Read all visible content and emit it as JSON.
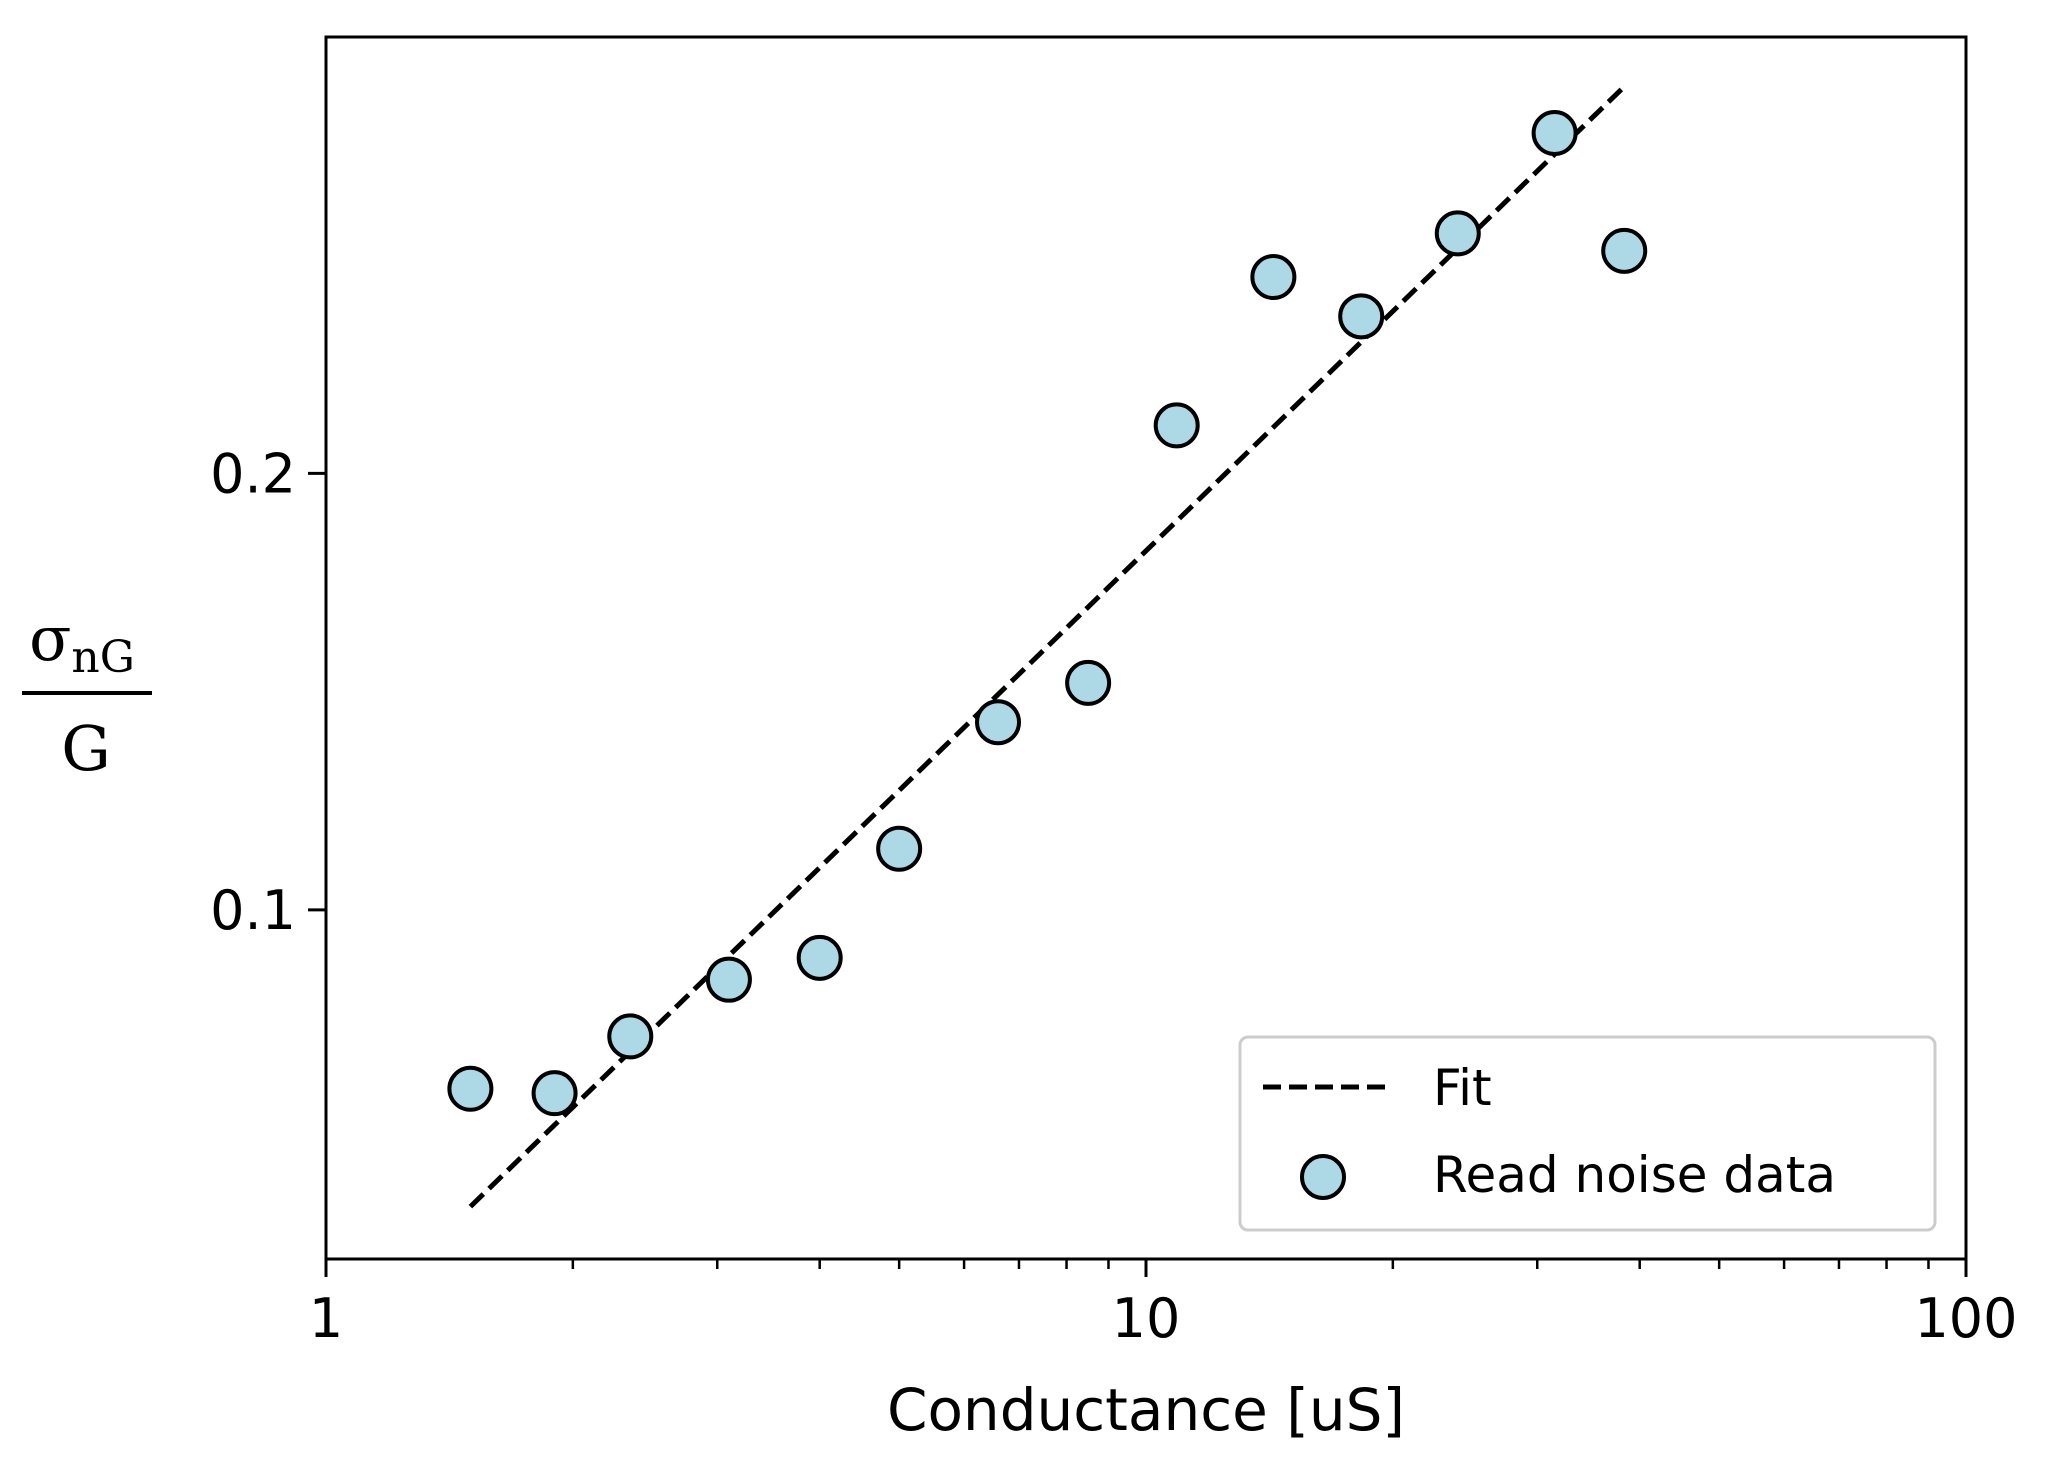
{
  "chart_data": {
    "type": "scatter",
    "xlabel": "Conductance [uS]",
    "ylabel": {
      "numerator": "σ",
      "numerator_subscript": "nG",
      "denominator": "G"
    },
    "xscale": "log",
    "xlim": [
      1,
      100
    ],
    "ylim": [
      0.02,
      0.3
    ],
    "xticks": [
      {
        "value": 1,
        "label": "1"
      },
      {
        "value": 10,
        "label": "10"
      },
      {
        "value": 100,
        "label": "100"
      }
    ],
    "yticks": [
      {
        "value": 0.1,
        "label": "0.1"
      },
      {
        "value": 0.2,
        "label": "0.2"
      }
    ],
    "grid": false,
    "legend_position": "bottom-right",
    "series": [
      {
        "name": "Fit",
        "kind": "line",
        "style": "dashed",
        "color": "#000000",
        "x": [
          1.5,
          38
        ],
        "y": [
          0.032,
          0.288
        ]
      },
      {
        "name": "Read noise data",
        "kind": "scatter",
        "color": "#add8e6",
        "edgecolor": "#000000",
        "x": [
          1.5,
          1.9,
          2.35,
          3.1,
          4.0,
          5.0,
          6.6,
          8.5,
          10.9,
          14.3,
          18.3,
          24.0,
          31.5,
          38.3
        ],
        "y": [
          0.059,
          0.058,
          0.071,
          0.084,
          0.089,
          0.114,
          0.143,
          0.152,
          0.211,
          0.245,
          0.236,
          0.255,
          0.278,
          0.251
        ]
      }
    ]
  }
}
